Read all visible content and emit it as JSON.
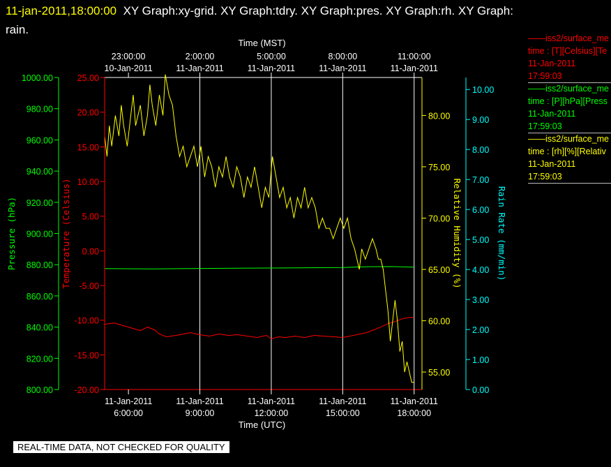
{
  "header": {
    "timestamp": "11-jan-2011,18:00:00",
    "graph_list": "XY Graph:xy-grid.  XY Graph:tdry.  XY Graph:pres.  XY Graph:rh.  XY Graph:",
    "graph_list_wrap": "rain."
  },
  "banner": "REAL-TIME DATA, NOT CHECKED FOR QUALITY",
  "colors": {
    "temperature": "#ff0000",
    "pressure": "#00ff00",
    "humidity": "#ffff00",
    "rain": "#00ffff",
    "grid": "#ffffff"
  },
  "legend": [
    {
      "line1": "——iss2/surface_me",
      "line2": "time : [T][Celsius][Te",
      "date": "11-Jan-2011",
      "time": "17:59:03",
      "color": "#ff0000"
    },
    {
      "line1": "——iss2/surface_me",
      "line2": "time : [P][hPa][Press",
      "date": "11-Jan-2011",
      "time": "17:59:03",
      "color": "#00ff00"
    },
    {
      "line1": "——iss2/surface_me",
      "line2": "time : [rh][%][Relativ",
      "date": "11-Jan-2011",
      "time": "17:59:03",
      "color": "#ffff00"
    }
  ],
  "chart_data": {
    "type": "line",
    "x_bottom_label": "Time (UTC)",
    "x_top_label": "Time (MST)",
    "xlim": [
      "11-Jan-2011 5:00:00",
      "11-Jan-2011 18:20:00"
    ],
    "bottom_ticks": [
      {
        "date": "11-Jan-2011",
        "time": "6:00:00",
        "hour": 6
      },
      {
        "date": "11-Jan-2011",
        "time": "9:00:00",
        "hour": 9
      },
      {
        "date": "11-Jan-2011",
        "time": "12:00:00",
        "hour": 12
      },
      {
        "date": "11-Jan-2011",
        "time": "15:00:00",
        "hour": 15
      },
      {
        "date": "11-Jan-2011",
        "time": "18:00:00",
        "hour": 18
      }
    ],
    "top_ticks": [
      {
        "time": "23:00:00",
        "date": "10-Jan-2011",
        "hour": 6
      },
      {
        "time": "2:00:00",
        "date": "11-Jan-2011",
        "hour": 9
      },
      {
        "time": "5:00:00",
        "date": "11-Jan-2011",
        "hour": 12
      },
      {
        "time": "8:00:00",
        "date": "11-Jan-2011",
        "hour": 15
      },
      {
        "time": "11:00:00",
        "date": "11-Jan-2011",
        "hour": 18
      }
    ],
    "vertical_grid_hours": [
      9,
      12,
      15,
      18
    ],
    "axes": {
      "pressure": {
        "label": "Pressure (hPa)",
        "ylim": [
          800,
          1000
        ],
        "ticks": [
          "800.00",
          "820.00",
          "840.00",
          "860.00",
          "880.00",
          "900.00",
          "920.00",
          "940.00",
          "960.00",
          "980.00",
          "1000.00"
        ]
      },
      "temperature": {
        "label": "Temperature (Celsius)",
        "ylim": [
          -20,
          25
        ],
        "ticks": [
          "-20.00",
          "-15.00",
          "-10.00",
          "-5.00",
          "0.00",
          "5.00",
          "10.00",
          "15.00",
          "20.00",
          "25.00"
        ]
      },
      "humidity": {
        "label": "Relative Humidity (%)",
        "ylim": [
          53.3,
          83.7
        ],
        "ticks": [
          "55.00",
          "60.00",
          "65.00",
          "70.00",
          "75.00",
          "80.00"
        ]
      },
      "rain": {
        "label": "Rain Rate (mm/min)",
        "ylim": [
          0,
          10.4
        ],
        "ticks": [
          "0.00",
          "1.00",
          "2.00",
          "3.00",
          "4.00",
          "5.00",
          "6.00",
          "7.00",
          "8.00",
          "9.00",
          "10.00"
        ]
      }
    },
    "series": [
      {
        "name": "iss2/surface_me",
        "axis": "temperature",
        "hours": [
          5.0,
          5.4,
          5.8,
          6.2,
          6.5,
          6.8,
          7.1,
          7.3,
          7.6,
          8.0,
          8.3,
          8.6,
          9.0,
          9.4,
          9.8,
          10.2,
          10.6,
          11.0,
          11.4,
          11.8,
          12.0,
          12.3,
          12.6,
          13.0,
          13.4,
          13.8,
          14.2,
          14.6,
          15.0,
          15.3,
          15.6,
          16.0,
          16.3,
          16.6,
          16.9,
          17.2,
          17.5,
          17.8,
          18.0
        ],
        "values": [
          -10.6,
          -10.4,
          -10.8,
          -11.2,
          -11.5,
          -11.0,
          -11.4,
          -12.0,
          -12.4,
          -12.2,
          -12.0,
          -11.8,
          -12.1,
          -12.3,
          -12.0,
          -12.2,
          -12.1,
          -12.3,
          -12.5,
          -12.2,
          -12.7,
          -12.4,
          -12.5,
          -12.3,
          -12.5,
          -12.2,
          -12.3,
          -12.4,
          -12.5,
          -12.3,
          -12.1,
          -11.8,
          -11.4,
          -11.0,
          -10.5,
          -10.2,
          -9.8,
          -9.6,
          -9.6
        ]
      },
      {
        "name": "iss2/surface_me",
        "axis": "pressure",
        "hours": [
          5.0,
          7.0,
          9.0,
          11.0,
          13.0,
          15.0,
          16.0,
          17.0,
          18.0
        ],
        "values": [
          877.5,
          877.3,
          877.6,
          877.8,
          878.0,
          878.2,
          878.7,
          878.8,
          878.5
        ]
      },
      {
        "name": "iss2/surface_me",
        "axis": "humidity",
        "hours": [
          5.0,
          5.1,
          5.2,
          5.3,
          5.45,
          5.6,
          5.7,
          5.8,
          5.95,
          6.1,
          6.2,
          6.3,
          6.5,
          6.65,
          6.8,
          6.9,
          7.0,
          7.15,
          7.3,
          7.45,
          7.55,
          7.7,
          7.85,
          8.0,
          8.15,
          8.3,
          8.45,
          8.6,
          8.75,
          8.9,
          9.05,
          9.2,
          9.35,
          9.5,
          9.65,
          9.8,
          9.95,
          10.1,
          10.25,
          10.4,
          10.55,
          10.7,
          10.85,
          11.0,
          11.15,
          11.3,
          11.45,
          11.6,
          11.75,
          11.9,
          12.05,
          12.2,
          12.35,
          12.5,
          12.65,
          12.8,
          12.95,
          13.1,
          13.25,
          13.4,
          13.55,
          13.7,
          13.85,
          14.0,
          14.15,
          14.3,
          14.45,
          14.6,
          14.75,
          14.9,
          15.05,
          15.2,
          15.35,
          15.5,
          15.6,
          15.7,
          15.8,
          15.95,
          16.1,
          16.25,
          16.4,
          16.5,
          16.6,
          16.7,
          16.8,
          16.9,
          17.0,
          17.1,
          17.2,
          17.3,
          17.4,
          17.5,
          17.6,
          17.7,
          17.8,
          17.9,
          18.0
        ],
        "values": [
          78,
          76,
          79,
          77,
          80,
          78,
          81,
          79,
          77,
          80,
          82,
          79,
          81,
          78,
          80,
          83,
          81,
          79,
          82,
          80,
          84,
          82,
          81,
          78,
          76,
          77,
          75,
          76,
          77,
          75,
          77,
          74,
          76,
          75,
          73,
          75,
          74,
          76,
          74,
          73,
          75,
          74,
          72,
          74,
          73,
          75,
          73,
          71,
          73,
          72,
          76,
          74,
          72,
          73,
          71,
          72,
          70,
          72,
          71,
          73,
          71,
          72,
          71,
          69,
          70,
          69,
          69,
          68,
          69,
          70,
          69,
          70,
          68,
          67,
          66,
          65,
          67,
          66,
          67,
          68,
          67,
          66,
          66,
          65,
          63,
          61,
          58,
          60,
          62,
          60,
          57,
          58,
          55,
          56,
          55,
          54,
          54
        ]
      },
      {
        "name": "rain",
        "axis": "rain",
        "hours": [],
        "values": []
      }
    ]
  }
}
